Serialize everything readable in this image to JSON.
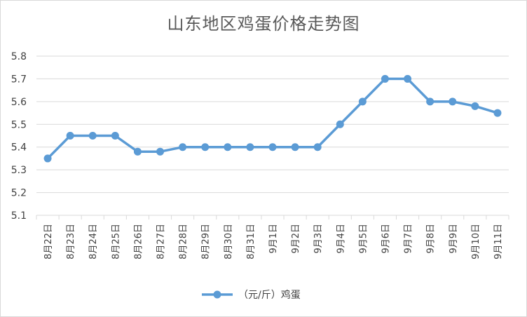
{
  "chart_data": {
    "type": "line",
    "title": "山东地区鸡蛋价格走势图",
    "categories": [
      "8月22日",
      "8月23日",
      "8月24日",
      "8月25日",
      "8月26日",
      "8月27日",
      "8月28日",
      "8月29日",
      "8月30日",
      "8月31日",
      "9月1日",
      "9月2日",
      "9月3日",
      "9月4日",
      "9月5日",
      "9月6日",
      "9月7日",
      "9月8日",
      "9月9日",
      "9月10日",
      "9月11日"
    ],
    "series": [
      {
        "name": "（元/斤）鸡蛋",
        "values": [
          5.35,
          5.45,
          5.45,
          5.45,
          5.38,
          5.38,
          5.4,
          5.4,
          5.4,
          5.4,
          5.4,
          5.4,
          5.4,
          5.5,
          5.6,
          5.7,
          5.7,
          5.6,
          5.6,
          5.58,
          5.55
        ]
      }
    ],
    "yticks": [
      "5.1",
      "5.2",
      "5.3",
      "5.4",
      "5.5",
      "5.6",
      "5.7",
      "5.8"
    ],
    "ylim": [
      5.1,
      5.8
    ],
    "xlabel": "",
    "ylabel": "",
    "grid": true,
    "legend_position": "bottom",
    "line_color": "#5b9bd5",
    "grid_color": "#d9d9d9"
  }
}
